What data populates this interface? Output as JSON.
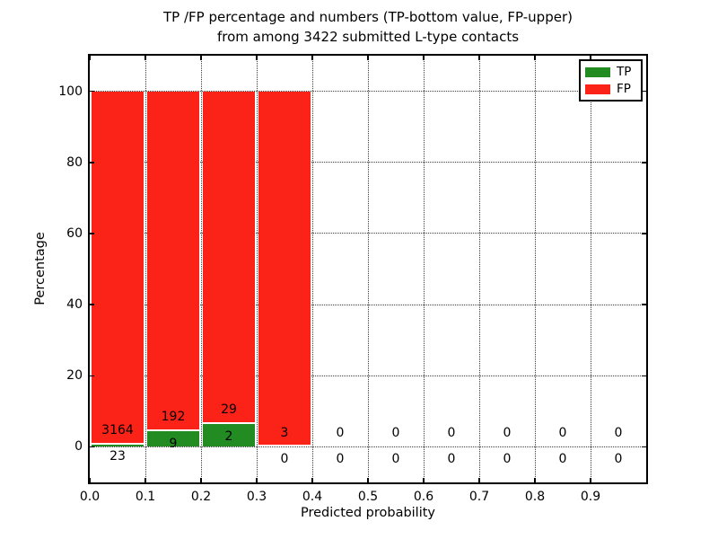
{
  "chart_data": {
    "type": "bar",
    "stacked": true,
    "title": "TP /FP percentage and numbers (TP-bottom value, FP-upper)",
    "subtitle": "from among 3422 submitted L-type contacts",
    "xlabel": "Predicted probability",
    "ylabel": "Percentage",
    "xlim": [
      0.0,
      1.0
    ],
    "ylim": [
      -10,
      110
    ],
    "xticks": [
      "0.0",
      "0.1",
      "0.2",
      "0.3",
      "0.4",
      "0.5",
      "0.6",
      "0.7",
      "0.8",
      "0.9"
    ],
    "yticks": [
      0,
      20,
      40,
      60,
      80,
      100
    ],
    "grid": "dotted",
    "bin_width": 0.1,
    "total_contacts": 3422,
    "legend": {
      "position": "upper right",
      "entries": [
        {
          "label": "TP",
          "color": "#228b22"
        },
        {
          "label": "FP",
          "color": "#fb2318"
        }
      ]
    },
    "series_note": "Each bar stacks TP (bottom, green) and FP (top, red) as percentage of bin total; annotations show raw counts (TP bottom number, FP upper number)",
    "bins": [
      {
        "x0": 0.0,
        "x1": 0.1,
        "tp": 23,
        "fp": 3164,
        "tp_pct": 0.72,
        "fp_pct": 99.28
      },
      {
        "x0": 0.1,
        "x1": 0.2,
        "tp": 9,
        "fp": 192,
        "tp_pct": 4.48,
        "fp_pct": 95.52
      },
      {
        "x0": 0.2,
        "x1": 0.3,
        "tp": 2,
        "fp": 29,
        "tp_pct": 6.45,
        "fp_pct": 93.55
      },
      {
        "x0": 0.3,
        "x1": 0.4,
        "tp": 0,
        "fp": 3,
        "tp_pct": 0,
        "fp_pct": 100
      },
      {
        "x0": 0.4,
        "x1": 0.5,
        "tp": 0,
        "fp": 0,
        "tp_pct": 0,
        "fp_pct": 0
      },
      {
        "x0": 0.5,
        "x1": 0.6,
        "tp": 0,
        "fp": 0,
        "tp_pct": 0,
        "fp_pct": 0
      },
      {
        "x0": 0.6,
        "x1": 0.7,
        "tp": 0,
        "fp": 0,
        "tp_pct": 0,
        "fp_pct": 0
      },
      {
        "x0": 0.7,
        "x1": 0.8,
        "tp": 0,
        "fp": 0,
        "tp_pct": 0,
        "fp_pct": 0
      },
      {
        "x0": 0.8,
        "x1": 0.9,
        "tp": 0,
        "fp": 0,
        "tp_pct": 0,
        "fp_pct": 0
      },
      {
        "x0": 0.9,
        "x1": 1.0,
        "tp": 0,
        "fp": 0,
        "tp_pct": 0,
        "fp_pct": 0
      }
    ],
    "colors": {
      "tp": "#228b22",
      "fp": "#fb2318",
      "grid": "#3a3a3a",
      "spine": "#000000",
      "background": "#ffffff"
    }
  }
}
